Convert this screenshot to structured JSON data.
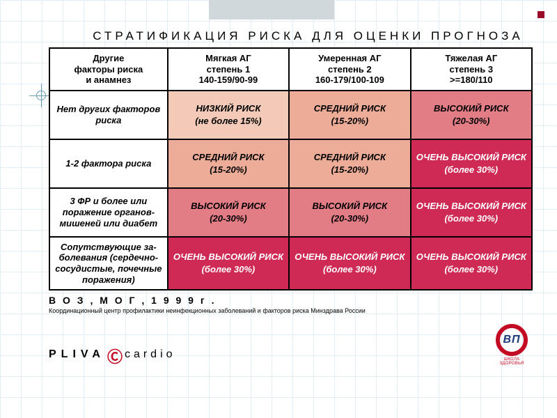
{
  "title": "СТРАТИФИКАЦИЯ РИСКА ДЛЯ ОЦЕНКИ ПРОГНОЗА",
  "columns": [
    {
      "h1": "Другие",
      "h2": "факторы риска",
      "h3": "и анамнез"
    },
    {
      "h1": "Мягкая АГ",
      "h2": "степень 1",
      "h3": "140-159/90-99"
    },
    {
      "h1": "Умеренная АГ",
      "h2": "степень 2",
      "h3": "160-179/100-109"
    },
    {
      "h1": "Тяжелая АГ",
      "h2": "степень 3",
      "h3": ">=180/110"
    }
  ],
  "rows": [
    {
      "label": "Нет других факторов риска",
      "cells": [
        {
          "t": "НИЗКИЙ РИСК",
          "s": "(не более 15%)",
          "bg": "#f3cab7"
        },
        {
          "t": "СРЕДНИЙ РИСК",
          "s": "(15-20%)",
          "bg": "#edac97"
        },
        {
          "t": "ВЫСОКИЙ  РИСК",
          "s": "(20-30%)",
          "bg": "#e27d86"
        }
      ]
    },
    {
      "label": "1-2 фактора риска",
      "cells": [
        {
          "t": "СРЕДНИЙ РИСК",
          "s": "(15-20%)",
          "bg": "#edac97"
        },
        {
          "t": "СРЕДНИЙ РИСК",
          "s": "(15-20%)",
          "bg": "#edac97"
        },
        {
          "t": "ОЧЕНЬ ВЫСОКИЙ РИСК",
          "s": "(более  30%)",
          "bg": "#cf2a55",
          "fg": "#ffffff"
        }
      ]
    },
    {
      "label": "3  ФР и более или поражение органов-мишеней или диабет",
      "cells": [
        {
          "t": "ВЫСОКИЙ  РИСК",
          "s": "(20-30%)",
          "bg": "#e27d86"
        },
        {
          "t": "ВЫСОКИЙ  РИСК",
          "s": "(20-30%)",
          "bg": "#e27d86"
        },
        {
          "t": "ОЧЕНЬ ВЫСОКИЙ РИСК",
          "s": "(более  30%)",
          "bg": "#cf2a55",
          "fg": "#ffffff"
        }
      ]
    },
    {
      "label": "Сопутствующие за-болевания (сердечно-сосудистые, почечные поражения)",
      "cells": [
        {
          "t": "ОЧЕНЬ ВЫСОКИЙ РИСК",
          "s": "(более  30%)",
          "bg": "#cf2a55",
          "fg": "#ffffff"
        },
        {
          "t": "ОЧЕНЬ ВЫСОКИЙ РИСК",
          "s": "(более  30%)",
          "bg": "#cf2a55",
          "fg": "#ffffff"
        },
        {
          "t": "ОЧЕНЬ ВЫСОКИЙ РИСК",
          "s": "(более  30%)",
          "bg": "#cf2a55",
          "fg": "#ffffff"
        }
      ]
    }
  ],
  "source_line": "В О З ,  М О Г ,  1 9 9 9  г .",
  "center_line": "Координационный центр профилактики неинфекционных заболеваний и факторов риска Минздрава России",
  "pliva": {
    "left": "PLIVA",
    "right": "cardio"
  },
  "bp_logo": {
    "text": "ВП",
    "sub": "ШКОЛА ЗДОРОВЬЯ"
  }
}
